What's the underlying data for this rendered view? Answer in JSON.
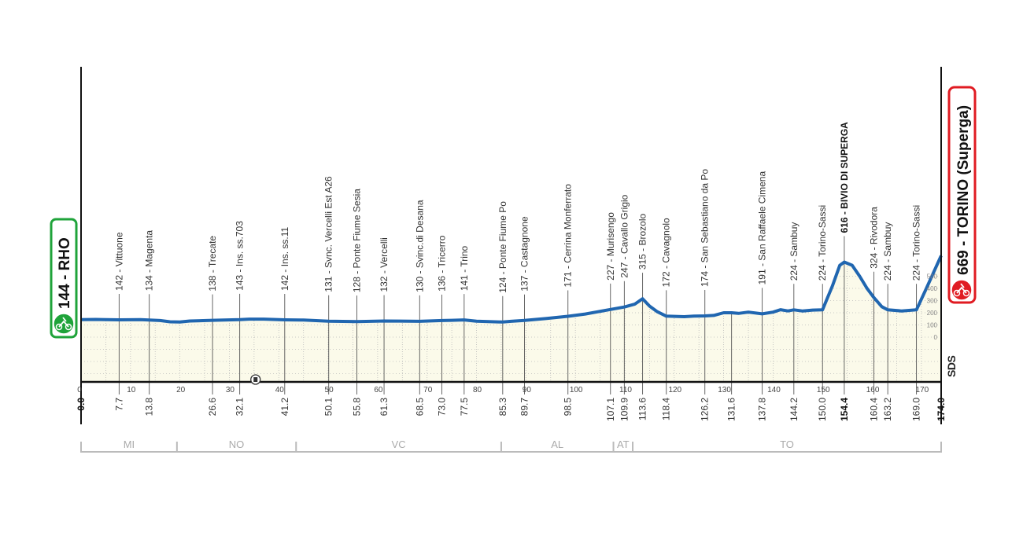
{
  "chart_data": {
    "type": "area",
    "xlim": [
      0,
      174
    ],
    "x_ticks": [
      0,
      10,
      20,
      30,
      40,
      50,
      60,
      70,
      80,
      90,
      100,
      110,
      120,
      130,
      140,
      150,
      160,
      170
    ],
    "elevation_scale_ticks": [
      0,
      100,
      200,
      300,
      400,
      500
    ],
    "grid": true,
    "colors": {
      "line": "#2066b0",
      "fill": "#fbfaea",
      "start": "#1fa33a",
      "finish": "#e01b22"
    },
    "start": {
      "label": "144 - RHO",
      "km": "0.0",
      "elevation": 144
    },
    "finish": {
      "label": "669 - TORINO (Superga)",
      "km": "174.0",
      "elevation": 669
    },
    "waypoints": [
      {
        "km": "7.7",
        "x": 7.7,
        "elevation": 142,
        "label": "142 - Vittuone"
      },
      {
        "km": "13.8",
        "x": 13.8,
        "elevation": 134,
        "label": "134 - Magenta"
      },
      {
        "km": "26.6",
        "x": 26.6,
        "elevation": 138,
        "label": "138 - Trecate"
      },
      {
        "km": "32.1",
        "x": 32.1,
        "elevation": 143,
        "label": "143 - Ins. ss.703"
      },
      {
        "km": "41.2",
        "x": 41.2,
        "elevation": 142,
        "label": "142 - Ins. ss.11"
      },
      {
        "km": "50.1",
        "x": 50.1,
        "elevation": 131,
        "label": "131 - Svnc. Vercelli Est A26"
      },
      {
        "km": "55.8",
        "x": 55.8,
        "elevation": 128,
        "label": "128 - Ponte Fiume Sesia"
      },
      {
        "km": "61.3",
        "x": 61.3,
        "elevation": 132,
        "label": "132 - Vercelli"
      },
      {
        "km": "68.5",
        "x": 68.5,
        "elevation": 130,
        "label": "130 - Svinc.di Desana"
      },
      {
        "km": "73.0",
        "x": 73.0,
        "elevation": 136,
        "label": "136 - Tricerro"
      },
      {
        "km": "77.5",
        "x": 77.5,
        "elevation": 141,
        "label": "141 - Trino"
      },
      {
        "km": "85.3",
        "x": 85.3,
        "elevation": 124,
        "label": "124 - Ponte Fiume Po"
      },
      {
        "km": "89.7",
        "x": 89.7,
        "elevation": 137,
        "label": "137 - Castagnone"
      },
      {
        "km": "98.5",
        "x": 98.5,
        "elevation": 171,
        "label": "171 - Cerrina Monferrato"
      },
      {
        "km": "107.1",
        "x": 107.1,
        "elevation": 227,
        "label": "227 - Murisengo"
      },
      {
        "km": "109.9",
        "x": 109.9,
        "elevation": 247,
        "label": "247 - Cavallo Grigio"
      },
      {
        "km": "113.6",
        "x": 113.6,
        "elevation": 315,
        "label": "315 - Brozolo"
      },
      {
        "km": "118.4",
        "x": 118.4,
        "elevation": 172,
        "label": "172 - Cavagnolo"
      },
      {
        "km": "126.2",
        "x": 126.2,
        "elevation": 174,
        "label": "174 - San Sebastiano da Po"
      },
      {
        "km": "131.6",
        "x": 131.6,
        "elevation": 200,
        "label": ""
      },
      {
        "km": "137.8",
        "x": 137.8,
        "elevation": 191,
        "label": "191 - San Raffaele Cimena"
      },
      {
        "km": "144.2",
        "x": 144.2,
        "elevation": 224,
        "label": "224 - Sambuy"
      },
      {
        "km": "150.0",
        "x": 150.0,
        "elevation": 224,
        "label": "224 - Torino-Sassi"
      },
      {
        "km": "154.4",
        "x": 154.4,
        "elevation": 616,
        "label": "616 - BIVIO DI SUPERGA",
        "bold": true
      },
      {
        "km": "160.4",
        "x": 160.4,
        "elevation": 324,
        "label": "324 - Rivodora"
      },
      {
        "km": "163.2",
        "x": 163.2,
        "elevation": 224,
        "label": "224 - Sambuy"
      },
      {
        "km": "169.0",
        "x": 169.0,
        "elevation": 224,
        "label": "224 - Torino-Sassi"
      }
    ],
    "profile": [
      [
        0,
        144
      ],
      [
        3,
        145
      ],
      [
        7.7,
        142
      ],
      [
        12,
        143
      ],
      [
        13.8,
        140
      ],
      [
        16,
        136
      ],
      [
        18,
        126
      ],
      [
        20,
        124
      ],
      [
        22,
        132
      ],
      [
        26.6,
        138
      ],
      [
        32.1,
        143
      ],
      [
        34,
        148
      ],
      [
        37,
        148
      ],
      [
        41.2,
        142
      ],
      [
        45,
        140
      ],
      [
        50.1,
        131
      ],
      [
        55.8,
        128
      ],
      [
        61.3,
        132
      ],
      [
        68.5,
        130
      ],
      [
        73.0,
        136
      ],
      [
        75,
        138
      ],
      [
        77.5,
        141
      ],
      [
        80,
        131
      ],
      [
        85.3,
        124
      ],
      [
        87,
        130
      ],
      [
        89.7,
        137
      ],
      [
        94,
        152
      ],
      [
        98.5,
        171
      ],
      [
        102,
        190
      ],
      [
        107.1,
        227
      ],
      [
        109.9,
        247
      ],
      [
        112,
        270
      ],
      [
        113.6,
        315
      ],
      [
        115,
        255
      ],
      [
        116.5,
        210
      ],
      [
        118.4,
        172
      ],
      [
        122,
        168
      ],
      [
        124,
        172
      ],
      [
        126.2,
        174
      ],
      [
        128,
        178
      ],
      [
        130,
        200
      ],
      [
        131.6,
        200
      ],
      [
        133,
        195
      ],
      [
        135,
        205
      ],
      [
        137.8,
        191
      ],
      [
        140,
        205
      ],
      [
        141.5,
        225
      ],
      [
        143,
        215
      ],
      [
        144.2,
        224
      ],
      [
        146,
        214
      ],
      [
        148,
        222
      ],
      [
        150,
        224
      ],
      [
        152,
        420
      ],
      [
        153.5,
        590
      ],
      [
        154.4,
        616
      ],
      [
        156,
        590
      ],
      [
        157.5,
        500
      ],
      [
        159,
        400
      ],
      [
        160.4,
        324
      ],
      [
        162,
        250
      ],
      [
        163.2,
        224
      ],
      [
        166,
        215
      ],
      [
        169,
        224
      ],
      [
        171,
        400
      ],
      [
        174,
        669
      ]
    ],
    "provinces": [
      {
        "label": "MI",
        "from": 0,
        "to": 19.4
      },
      {
        "label": "NO",
        "from": 19.4,
        "to": 43.5
      },
      {
        "label": "VC",
        "from": 43.5,
        "to": 85.0
      },
      {
        "label": "AL",
        "from": 85.0,
        "to": 107.7
      },
      {
        "label": "AT",
        "from": 107.7,
        "to": 111.6
      },
      {
        "label": "TO",
        "from": 111.6,
        "to": 174
      }
    ],
    "tunnel_km": 35.3
  },
  "logo": "SDS"
}
